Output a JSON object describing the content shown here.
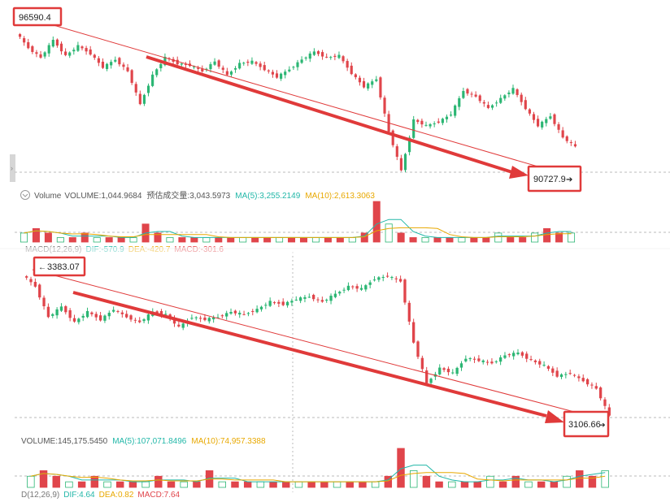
{
  "colors": {
    "up": "#2bb673",
    "down": "#e0454b",
    "annotation": "#e03a3a",
    "ma5": "#22b7a8",
    "ma10": "#e8a800",
    "text": "#555555",
    "grid": "#c8c8c8"
  },
  "chart_data": [
    {
      "type": "candlestick",
      "panel": "top",
      "ohlc_path": [
        96590.4,
        95800,
        95300,
        96200,
        95400,
        95900,
        95500,
        94800,
        95200,
        94600,
        92900,
        94400,
        95300,
        95000,
        94900,
        94600,
        95100,
        94400,
        95000,
        95100,
        94700,
        94300,
        94700,
        95200,
        95600,
        95300,
        95400,
        94500,
        93800,
        94200,
        91500,
        89500,
        92100,
        91800,
        92000,
        92400,
        93600,
        93300,
        92700,
        93200,
        93700,
        92700,
        91800,
        92300,
        91200,
        90727.9
      ],
      "current_price_label": "90727.9",
      "start_price_label": "96590.4",
      "volume_legend": {
        "icon": "eye-icon",
        "name": "Volume",
        "volume": "VOLUME:1,044.9684",
        "estimated": "预估成交量:3,043.5973",
        "ma5": "MA(5):3,255.2149",
        "ma10": "MA(10):2,613.3063"
      },
      "volume_values": [
        2,
        3,
        2,
        1,
        1,
        2,
        1,
        1,
        1,
        1,
        4,
        2,
        1,
        1,
        1,
        1,
        1,
        1,
        1,
        1,
        1,
        1,
        1,
        1,
        1,
        1,
        1,
        1,
        2,
        9,
        4,
        2,
        1,
        1,
        1,
        1,
        1,
        1,
        1,
        2,
        1,
        1,
        2,
        3,
        2,
        2
      ],
      "macd_legend": {
        "name": "MACD(12,26,9)",
        "dif": "DIF:-570.9",
        "dea": "DEA:-420.7",
        "macd": "MACD:-301.6"
      }
    },
    {
      "type": "candlestick",
      "panel": "bottom",
      "ohlc_path": [
        3383.07,
        3360,
        3300,
        3320,
        3290,
        3310,
        3295,
        3315,
        3300,
        3290,
        3310,
        3305,
        3280,
        3300,
        3295,
        3300,
        3310,
        3305,
        3315,
        3330,
        3325,
        3335,
        3340,
        3330,
        3345,
        3360,
        3355,
        3375,
        3380,
        3370,
        3250,
        3170,
        3200,
        3190,
        3220,
        3215,
        3210,
        3225,
        3230,
        3215,
        3205,
        3185,
        3190,
        3175,
        3160,
        3106.66
      ],
      "current_price_label": "3106.66",
      "start_price_label": "3383.07",
      "volume_legend": {
        "volume": "VOLUME:145,175.5450",
        "ma5": "MA(5):107,071.8496",
        "ma10": "MA(10):74,957.3388"
      },
      "volume_values": [
        2,
        3,
        2,
        1,
        1,
        2,
        1,
        1,
        1,
        1,
        2,
        1,
        1,
        1,
        3,
        1,
        1,
        1,
        1,
        1,
        1,
        1,
        1,
        1,
        1,
        1,
        1,
        1,
        2,
        7,
        3,
        2,
        1,
        1,
        1,
        1,
        2,
        1,
        2,
        1,
        1,
        1,
        2,
        3,
        2,
        3
      ],
      "macd_legend": {
        "name": "D(12,26,9)",
        "dif": "DIF:4.64",
        "dea": "DEA:0.82",
        "macd": "MACD:7.64"
      }
    }
  ]
}
